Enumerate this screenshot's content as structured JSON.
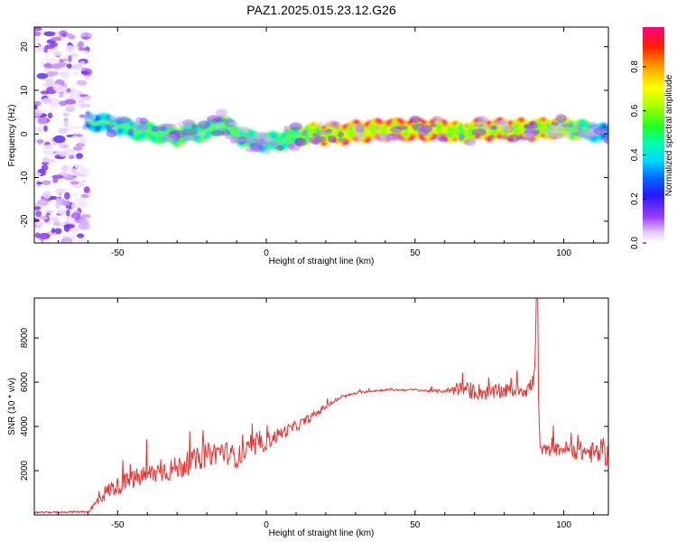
{
  "title": "PAZ1.2025.015.23.12.G26",
  "chart_data": [
    {
      "type": "heatmap",
      "xlabel": "Height of straight line (km)",
      "ylabel": "Frequency (Hz)",
      "xlim": [
        -78,
        115
      ],
      "ylim": [
        -25,
        24.5
      ],
      "xticks": [
        -50,
        0,
        50,
        100
      ],
      "yticks": [
        -20,
        -10,
        0,
        10,
        20
      ],
      "colorbar": {
        "label": "Normalized spectral amplitude",
        "range": [
          0.0,
          0.98
        ],
        "ticks": [
          "0.0",
          "0.2",
          "0.4",
          "0.6",
          "0.8"
        ]
      },
      "noise_region_x": [
        -78,
        -60
      ],
      "ridge": {
        "x": [
          -60,
          -55,
          -50,
          -45,
          -40,
          -35,
          -30,
          -25,
          -20,
          -15,
          -10,
          -5,
          0,
          5,
          10,
          15,
          20,
          25,
          30,
          40,
          50,
          60,
          66,
          70,
          80,
          90,
          100,
          105,
          110,
          115
        ],
        "freq": [
          3,
          2.5,
          2,
          1,
          0.5,
          0,
          -0.5,
          0.5,
          0.5,
          2.5,
          0,
          -1.5,
          -2,
          -1.5,
          -0.5,
          0,
          0,
          0,
          0.5,
          1,
          1,
          1,
          0,
          1,
          1,
          1,
          1.5,
          1,
          0.5,
          0
        ],
        "amp": [
          0.35,
          0.4,
          0.45,
          0.5,
          0.55,
          0.55,
          0.6,
          0.55,
          0.55,
          0.6,
          0.55,
          0.55,
          0.5,
          0.55,
          0.6,
          0.75,
          0.85,
          0.9,
          0.9,
          0.95,
          0.95,
          0.95,
          0.7,
          0.9,
          0.9,
          0.85,
          0.75,
          0.6,
          0.45,
          0.35
        ]
      }
    },
    {
      "type": "line",
      "xlabel": "Height of straight line (km)",
      "ylabel": "SNR (10 * v/v)",
      "xlim": [
        -78,
        115
      ],
      "ylim": [
        0,
        9800
      ],
      "xticks": [
        -50,
        0,
        50,
        100
      ],
      "yticks": [
        2000,
        4000,
        6000,
        8000
      ],
      "series": [
        {
          "color": "#e8322f",
          "x": [
            -78,
            -60,
            -58,
            -55,
            -52,
            -50,
            -45,
            -40,
            -35,
            -30,
            -25,
            -20,
            -15,
            -10,
            -5,
            0,
            5,
            10,
            15,
            20,
            25,
            30,
            35,
            40,
            45,
            50,
            55,
            60,
            65,
            70,
            75,
            80,
            85,
            88,
            90,
            91,
            91.5,
            92,
            95,
            100,
            105,
            110,
            115
          ],
          "y": [
            100,
            150,
            400,
            900,
            1200,
            1300,
            1600,
            1800,
            2000,
            2100,
            2400,
            2700,
            2900,
            2600,
            3000,
            3300,
            3700,
            4000,
            4400,
            4900,
            5300,
            5500,
            5600,
            5650,
            5650,
            5650,
            5600,
            5600,
            5700,
            5600,
            5500,
            5600,
            5650,
            5700,
            6000,
            9800,
            5300,
            3000,
            2900,
            3000,
            2900,
            2800,
            2700
          ],
          "noise": [
            80,
            80,
            400,
            700,
            800,
            800,
            900,
            1000,
            1050,
            1100,
            1100,
            1100,
            1100,
            1000,
            900,
            800,
            600,
            500,
            400,
            250,
            150,
            100,
            120,
            100,
            100,
            100,
            120,
            150,
            700,
            800,
            700,
            650,
            600,
            900,
            1200,
            0,
            0,
            500,
            500,
            700,
            900,
            1000,
            1000
          ]
        }
      ]
    }
  ]
}
